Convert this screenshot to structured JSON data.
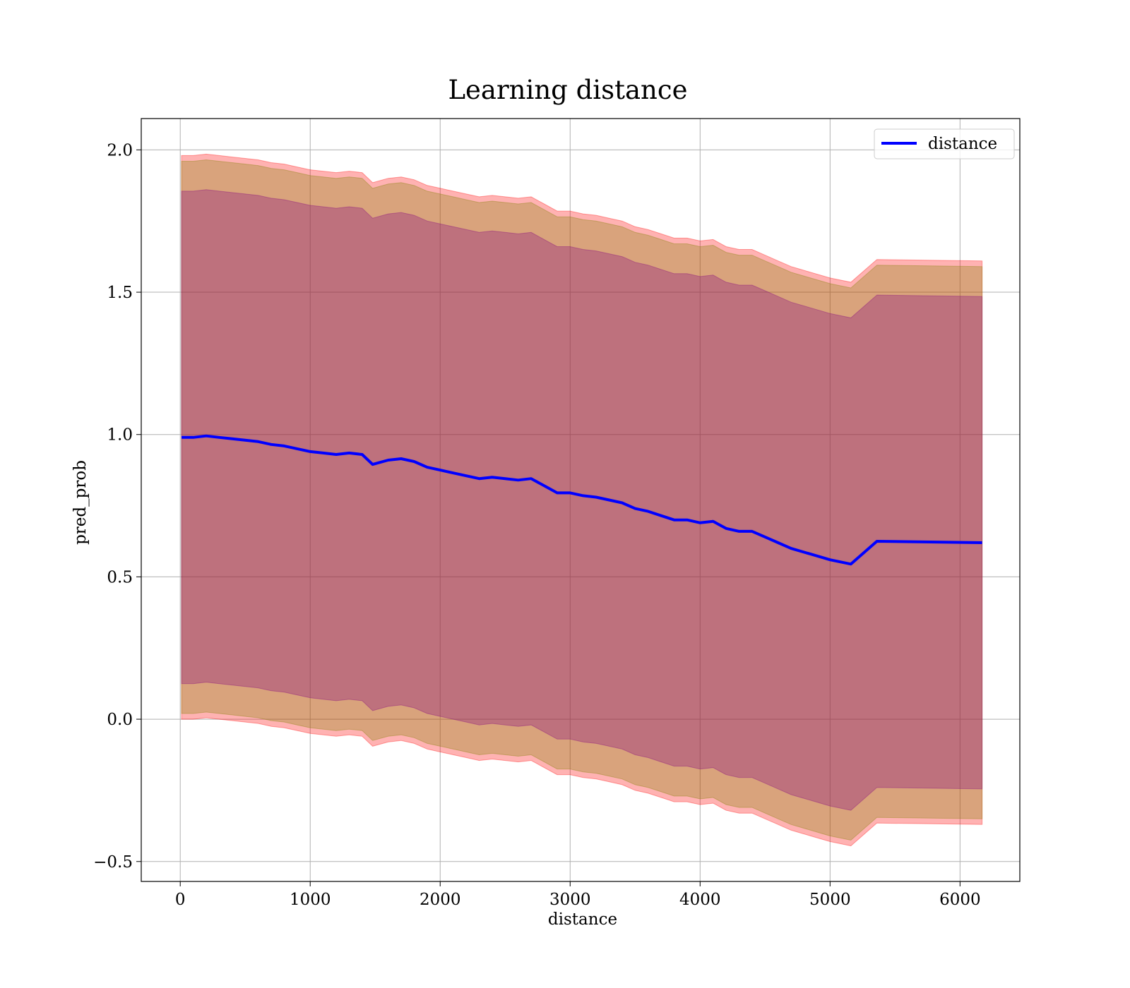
{
  "colors": {
    "line": "#0000ff",
    "outer_band": "#ff0000",
    "middle_band": "#808000",
    "inner_band": "#800080",
    "grid": "#b0b0b0"
  },
  "chart_data": {
    "type": "line",
    "title": "Learning distance",
    "xlabel": "distance",
    "ylabel": "pred_prob",
    "xlim": [
      -300,
      6460
    ],
    "ylim": [
      -0.57,
      2.11
    ],
    "xticks": [
      0,
      1000,
      2000,
      3000,
      4000,
      5000,
      6000
    ],
    "xtick_labels": [
      "0",
      "1000",
      "2000",
      "3000",
      "4000",
      "5000",
      "6000"
    ],
    "yticks": [
      -0.5,
      0.0,
      0.5,
      1.0,
      1.5,
      2.0
    ],
    "ytick_labels": [
      "−0.5",
      "0.0",
      "0.5",
      "1.0",
      "1.5",
      "2.0"
    ],
    "grid": true,
    "legend": {
      "position": "top-right",
      "entries": [
        "distance"
      ]
    },
    "series": [
      {
        "name": "distance",
        "x": [
          10,
          100,
          200,
          300,
          400,
          500,
          600,
          700,
          800,
          900,
          1000,
          1100,
          1200,
          1300,
          1400,
          1480,
          1600,
          1700,
          1800,
          1900,
          2000,
          2100,
          2200,
          2300,
          2400,
          2500,
          2600,
          2700,
          2800,
          2900,
          3000,
          3100,
          3200,
          3300,
          3400,
          3500,
          3600,
          3700,
          3800,
          3900,
          4000,
          4100,
          4200,
          4300,
          4400,
          4500,
          4600,
          4700,
          4850,
          5000,
          5160,
          5360,
          6170
        ],
        "y": [
          0.99,
          0.99,
          0.995,
          0.99,
          0.985,
          0.98,
          0.975,
          0.965,
          0.96,
          0.95,
          0.94,
          0.935,
          0.93,
          0.935,
          0.93,
          0.895,
          0.91,
          0.915,
          0.905,
          0.885,
          0.875,
          0.865,
          0.855,
          0.845,
          0.85,
          0.845,
          0.84,
          0.845,
          0.82,
          0.795,
          0.795,
          0.785,
          0.78,
          0.77,
          0.76,
          0.74,
          0.73,
          0.715,
          0.7,
          0.7,
          0.69,
          0.695,
          0.67,
          0.66,
          0.66,
          0.64,
          0.62,
          0.6,
          0.58,
          0.56,
          0.545,
          0.625,
          0.62
        ]
      }
    ],
    "bands": [
      {
        "name": "outer",
        "offset_up": 0.99,
        "offset_down": 0.99,
        "end_offset_up": 0.99,
        "end_offset_down": 0.99
      },
      {
        "name": "middle",
        "offset_up": 0.97,
        "offset_down": 0.97
      },
      {
        "name": "inner",
        "offset_up": 0.865,
        "offset_down": 0.865
      }
    ]
  }
}
